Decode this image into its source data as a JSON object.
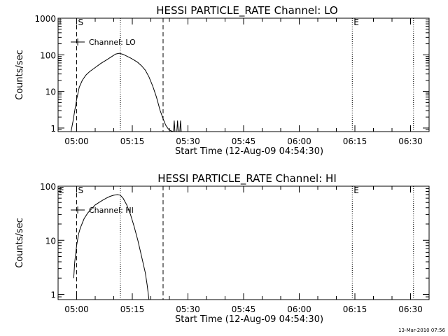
{
  "footer": {
    "timestamp": "13-Mar-2010 07:56"
  },
  "chart_data": [
    {
      "type": "line",
      "title": "HESSI PARTICLE_RATE Channel: LO",
      "xlabel": "Start Time (12-Aug-09 04:54:30)",
      "ylabel": "Counts/sec",
      "yscale": "log",
      "ylim": [
        0.8,
        1000
      ],
      "xlim_minutes": [
        -5.0,
        95.0
      ],
      "x_tick_labels": [
        "05:00",
        "05:15",
        "05:30",
        "05:45",
        "06:00",
        "06:15",
        "06:30"
      ],
      "y_tick_labels": [
        "1",
        "10",
        "100",
        "1000"
      ],
      "y_ticks": [
        1,
        10,
        100,
        1000
      ],
      "legend": "top-left",
      "markers": [
        {
          "label": "S",
          "minute": 0.0,
          "style": "dashed"
        },
        {
          "label": "",
          "minute": 11.8,
          "style": "dotted"
        },
        {
          "label": "",
          "minute": 23.3,
          "style": "dashed"
        },
        {
          "label": "E",
          "minute": 74.3,
          "style": "dotted"
        },
        {
          "label": "",
          "minute": 90.8,
          "style": "dotted"
        }
      ],
      "series": [
        {
          "name": "Channel: LO",
          "x": [
            -1.5,
            -1.0,
            -0.5,
            0.0,
            0.7,
            1.5,
            2.5,
            3.5,
            5.0,
            6.5,
            8.0,
            9.5,
            10.5,
            11.5,
            12.5,
            13.5,
            14.5,
            15.5,
            16.5,
            17.5,
            18.5,
            19.5,
            20.5,
            21.5,
            22.5,
            23.3,
            24.0,
            24.7,
            25.3,
            26.0
          ],
          "y": [
            0.8,
            1.5,
            3.0,
            6.0,
            13.0,
            20.0,
            28.0,
            35.0,
            45.0,
            58.0,
            72.0,
            90.0,
            105.0,
            110.0,
            103.0,
            92.0,
            82.0,
            72.0,
            62.0,
            50.0,
            38.0,
            25.0,
            14.0,
            7.0,
            3.0,
            1.8,
            1.2,
            0.95,
            0.85,
            0.8
          ]
        }
      ]
    },
    {
      "type": "line",
      "title": "HESSI PARTICLE_RATE Channel: HI",
      "xlabel": "Start Time (12-Aug-09 04:54:30)",
      "ylabel": "Counts/sec",
      "yscale": "log",
      "ylim": [
        0.8,
        100
      ],
      "xlim_minutes": [
        -5.0,
        95.0
      ],
      "x_tick_labels": [
        "05:00",
        "05:15",
        "05:30",
        "05:45",
        "06:00",
        "06:15",
        "06:30"
      ],
      "y_tick_labels": [
        "1",
        "10",
        "100"
      ],
      "y_ticks": [
        1,
        10,
        100
      ],
      "legend": "top-left",
      "markers": [
        {
          "label": "S",
          "minute": 0.0,
          "style": "dashed"
        },
        {
          "label": "",
          "minute": 11.8,
          "style": "dotted"
        },
        {
          "label": "",
          "minute": 23.3,
          "style": "dashed"
        },
        {
          "label": "E",
          "minute": 74.3,
          "style": "dotted"
        },
        {
          "label": "",
          "minute": 90.8,
          "style": "dotted"
        }
      ],
      "series": [
        {
          "name": "Channel: HI",
          "x": [
            -0.8,
            -0.5,
            0.0,
            0.5,
            1.0,
            2.0,
            3.0,
            4.0,
            5.0,
            6.0,
            7.0,
            8.0,
            9.0,
            10.0,
            11.0,
            11.8,
            12.5,
            13.5,
            14.5,
            15.5,
            16.5,
            17.5,
            18.5,
            19.0,
            19.5
          ],
          "y": [
            2.0,
            4.0,
            8.0,
            13.0,
            17.0,
            25.0,
            32.0,
            38.0,
            45.0,
            50.0,
            55.0,
            60.0,
            65.0,
            68.0,
            70.0,
            68.0,
            60.0,
            45.0,
            30.0,
            18.0,
            10.0,
            5.0,
            2.5,
            1.5,
            0.8
          ]
        }
      ]
    }
  ]
}
